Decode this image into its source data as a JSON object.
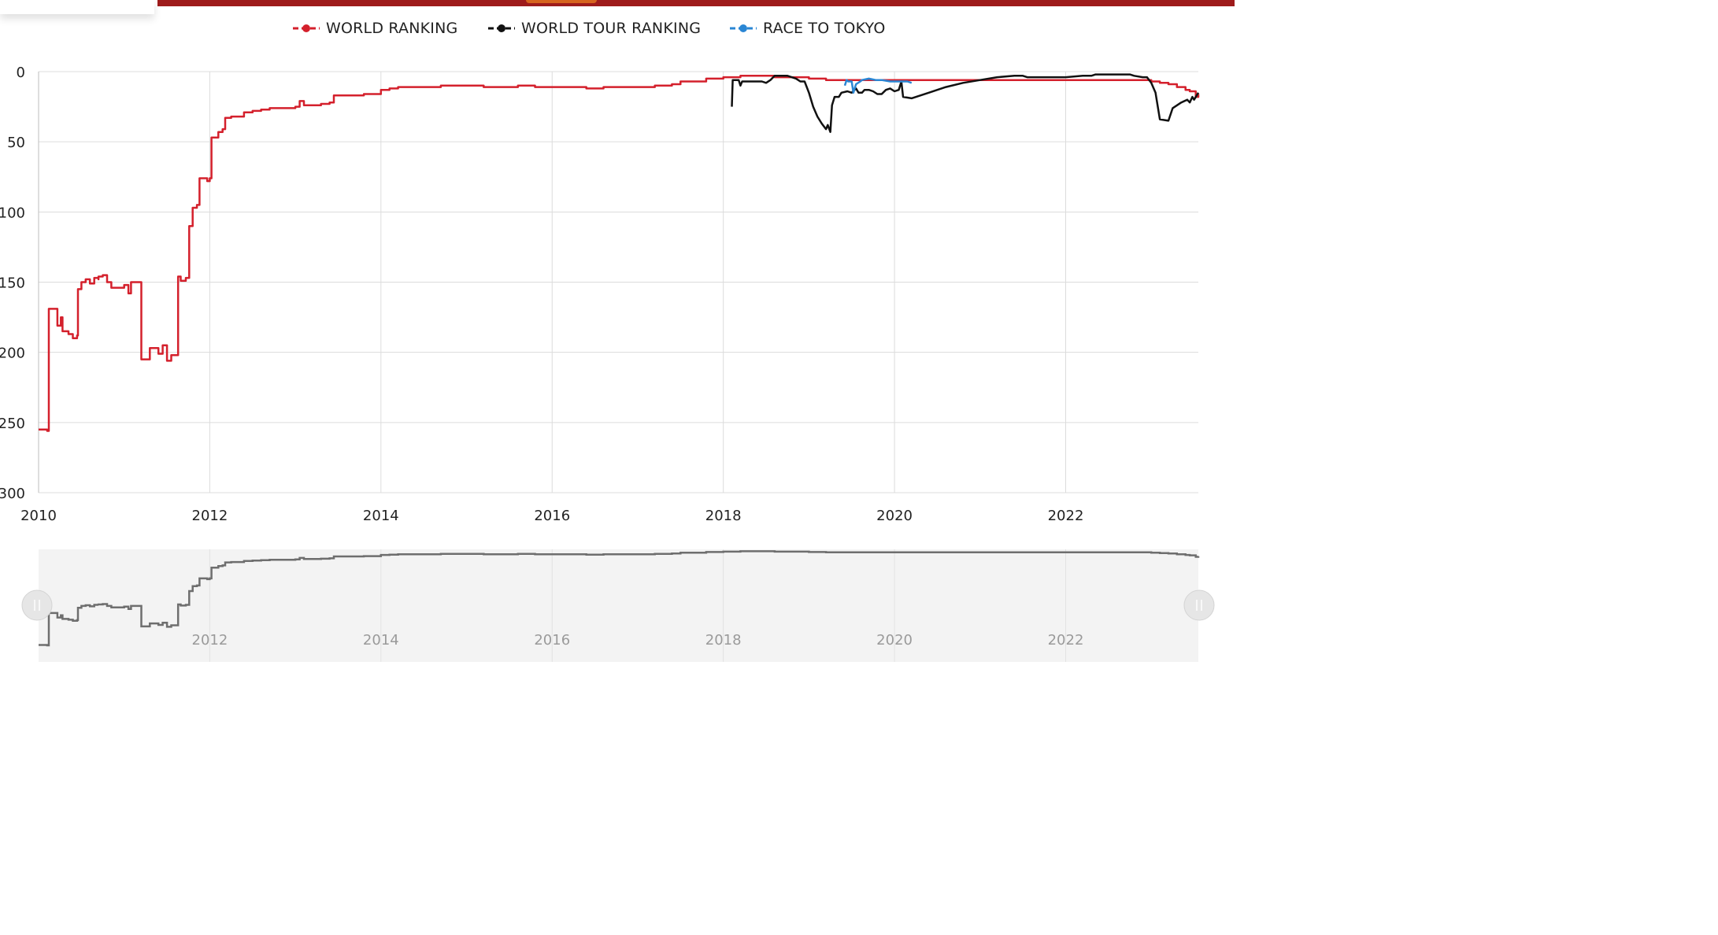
{
  "colors": {
    "world_ranking": "#d4202c",
    "world_tour_ranking": "#111111",
    "race_to_tokyo": "#2a86d4",
    "navigator_line": "#6e6e6e",
    "grid": "#dcdcdc",
    "header_bar": "#9e1b1b"
  },
  "chart_data": {
    "type": "line",
    "title": "",
    "xlabel": "",
    "ylabel": "",
    "y_reversed": true,
    "ylim": [
      0,
      300
    ],
    "xlim": [
      2010.0,
      2023.55
    ],
    "y_ticks": [
      0,
      50,
      100,
      150,
      200,
      250,
      300
    ],
    "y_tick_labels": [
      "0",
      "50",
      "100",
      "150",
      "200",
      "250",
      "300"
    ],
    "x_ticks": [
      2010,
      2012,
      2014,
      2016,
      2018,
      2020,
      2022
    ],
    "x_tick_labels": [
      "2010",
      "2012",
      "2014",
      "2016",
      "2018",
      "2020",
      "2022"
    ],
    "navigator_x_tick_labels": [
      "2012",
      "2014",
      "2016",
      "2018",
      "2020",
      "2022"
    ],
    "grid": true,
    "legend_position": "top-center",
    "series": [
      {
        "name": "WORLD RANKING",
        "key": "world_ranking",
        "points": [
          [
            2010.0,
            255
          ],
          [
            2010.08,
            255
          ],
          [
            2010.1,
            256
          ],
          [
            2010.12,
            169
          ],
          [
            2010.2,
            169
          ],
          [
            2010.22,
            181
          ],
          [
            2010.26,
            175
          ],
          [
            2010.28,
            185
          ],
          [
            2010.35,
            187
          ],
          [
            2010.4,
            190
          ],
          [
            2010.45,
            188
          ],
          [
            2010.46,
            155
          ],
          [
            2010.5,
            150
          ],
          [
            2010.55,
            148
          ],
          [
            2010.6,
            151
          ],
          [
            2010.65,
            147
          ],
          [
            2010.7,
            148
          ],
          [
            2010.7,
            146
          ],
          [
            2010.75,
            145
          ],
          [
            2010.8,
            150
          ],
          [
            2010.85,
            154
          ],
          [
            2010.95,
            154
          ],
          [
            2011.0,
            152
          ],
          [
            2011.05,
            158
          ],
          [
            2011.08,
            150
          ],
          [
            2011.18,
            150
          ],
          [
            2011.2,
            205
          ],
          [
            2011.25,
            205
          ],
          [
            2011.3,
            197
          ],
          [
            2011.38,
            197
          ],
          [
            2011.4,
            201
          ],
          [
            2011.45,
            195
          ],
          [
            2011.5,
            206
          ],
          [
            2011.55,
            202
          ],
          [
            2011.62,
            202
          ],
          [
            2011.63,
            146
          ],
          [
            2011.66,
            149
          ],
          [
            2011.72,
            147
          ],
          [
            2011.76,
            110
          ],
          [
            2011.8,
            97
          ],
          [
            2011.85,
            95
          ],
          [
            2011.88,
            76
          ],
          [
            2011.95,
            76
          ],
          [
            2011.97,
            78
          ],
          [
            2012.0,
            76
          ],
          [
            2012.02,
            47
          ],
          [
            2012.08,
            47
          ],
          [
            2012.1,
            43
          ],
          [
            2012.15,
            41
          ],
          [
            2012.18,
            33
          ],
          [
            2012.25,
            32
          ],
          [
            2012.35,
            32
          ],
          [
            2012.4,
            29
          ],
          [
            2012.5,
            28
          ],
          [
            2012.6,
            27
          ],
          [
            2012.7,
            26
          ],
          [
            2012.8,
            26
          ],
          [
            2012.9,
            26
          ],
          [
            2013.0,
            25
          ],
          [
            2013.05,
            21
          ],
          [
            2013.1,
            24
          ],
          [
            2013.2,
            24
          ],
          [
            2013.3,
            23
          ],
          [
            2013.4,
            22
          ],
          [
            2013.45,
            17
          ],
          [
            2013.6,
            17
          ],
          [
            2013.8,
            16
          ],
          [
            2013.95,
            16
          ],
          [
            2014.0,
            13
          ],
          [
            2014.1,
            12
          ],
          [
            2014.2,
            11
          ],
          [
            2014.3,
            11
          ],
          [
            2014.5,
            11
          ],
          [
            2014.7,
            10
          ],
          [
            2014.9,
            10
          ],
          [
            2015.0,
            10
          ],
          [
            2015.2,
            11
          ],
          [
            2015.4,
            11
          ],
          [
            2015.6,
            10
          ],
          [
            2015.8,
            11
          ],
          [
            2016.0,
            11
          ],
          [
            2016.2,
            11
          ],
          [
            2016.4,
            12
          ],
          [
            2016.6,
            11
          ],
          [
            2016.8,
            11
          ],
          [
            2017.0,
            11
          ],
          [
            2017.2,
            10
          ],
          [
            2017.4,
            9
          ],
          [
            2017.5,
            7
          ],
          [
            2017.6,
            7
          ],
          [
            2017.8,
            5
          ],
          [
            2017.9,
            5
          ],
          [
            2018.0,
            4
          ],
          [
            2018.1,
            4
          ],
          [
            2018.2,
            3
          ],
          [
            2018.3,
            3
          ],
          [
            2018.5,
            3
          ],
          [
            2018.6,
            4
          ],
          [
            2018.8,
            4
          ],
          [
            2019.0,
            5
          ],
          [
            2019.2,
            6
          ],
          [
            2019.4,
            6
          ],
          [
            2019.6,
            6
          ],
          [
            2019.8,
            6
          ],
          [
            2020.0,
            6
          ],
          [
            2020.2,
            6
          ],
          [
            2020.5,
            6
          ],
          [
            2021.0,
            6
          ],
          [
            2021.5,
            6
          ],
          [
            2022.0,
            6
          ],
          [
            2022.5,
            6
          ],
          [
            2022.8,
            6
          ],
          [
            2023.0,
            7
          ],
          [
            2023.1,
            8
          ],
          [
            2023.2,
            9
          ],
          [
            2023.3,
            11
          ],
          [
            2023.4,
            13
          ],
          [
            2023.45,
            14
          ],
          [
            2023.5,
            14
          ],
          [
            2023.52,
            18
          ],
          [
            2023.55,
            16
          ]
        ]
      },
      {
        "name": "WORLD TOUR RANKING",
        "key": "world_tour_ranking",
        "points": [
          [
            2018.1,
            25
          ],
          [
            2018.11,
            6
          ],
          [
            2018.18,
            6
          ],
          [
            2018.2,
            10
          ],
          [
            2018.22,
            7
          ],
          [
            2018.3,
            7
          ],
          [
            2018.45,
            7
          ],
          [
            2018.5,
            8
          ],
          [
            2018.55,
            6
          ],
          [
            2018.6,
            3
          ],
          [
            2018.75,
            3
          ],
          [
            2018.85,
            5
          ],
          [
            2018.9,
            7
          ],
          [
            2018.95,
            7
          ],
          [
            2019.0,
            15
          ],
          [
            2019.05,
            25
          ],
          [
            2019.1,
            32
          ],
          [
            2019.15,
            37
          ],
          [
            2019.2,
            41
          ],
          [
            2019.22,
            38
          ],
          [
            2019.25,
            43
          ],
          [
            2019.27,
            24
          ],
          [
            2019.3,
            18
          ],
          [
            2019.35,
            18
          ],
          [
            2019.38,
            15
          ],
          [
            2019.45,
            14
          ],
          [
            2019.5,
            15
          ],
          [
            2019.55,
            12
          ],
          [
            2019.58,
            15
          ],
          [
            2019.62,
            15
          ],
          [
            2019.65,
            13
          ],
          [
            2019.7,
            13
          ],
          [
            2019.75,
            14
          ],
          [
            2019.8,
            16
          ],
          [
            2019.85,
            16
          ],
          [
            2019.9,
            13
          ],
          [
            2019.95,
            12
          ],
          [
            2020.0,
            14
          ],
          [
            2020.05,
            13
          ],
          [
            2020.08,
            7
          ],
          [
            2020.1,
            18
          ],
          [
            2020.2,
            19
          ],
          [
            2020.4,
            15
          ],
          [
            2020.6,
            11
          ],
          [
            2020.8,
            8
          ],
          [
            2021.0,
            6
          ],
          [
            2021.2,
            4
          ],
          [
            2021.4,
            3
          ],
          [
            2021.5,
            3
          ],
          [
            2021.55,
            4
          ],
          [
            2021.8,
            4
          ],
          [
            2022.0,
            4
          ],
          [
            2022.2,
            3
          ],
          [
            2022.3,
            3
          ],
          [
            2022.35,
            2
          ],
          [
            2022.6,
            2
          ],
          [
            2022.75,
            2
          ],
          [
            2022.8,
            3
          ],
          [
            2022.9,
            4
          ],
          [
            2022.95,
            4
          ],
          [
            2023.0,
            8
          ],
          [
            2023.05,
            15
          ],
          [
            2023.1,
            34
          ],
          [
            2023.2,
            35
          ],
          [
            2023.25,
            26
          ],
          [
            2023.35,
            22
          ],
          [
            2023.42,
            20
          ],
          [
            2023.45,
            22
          ],
          [
            2023.48,
            18
          ],
          [
            2023.5,
            20
          ],
          [
            2023.55,
            15
          ]
        ]
      },
      {
        "name": "RACE TO TOKYO",
        "key": "race_to_tokyo",
        "points": [
          [
            2019.42,
            10
          ],
          [
            2019.44,
            6
          ],
          [
            2019.46,
            7
          ],
          [
            2019.5,
            7
          ],
          [
            2019.52,
            15
          ],
          [
            2019.55,
            9
          ],
          [
            2019.6,
            7
          ],
          [
            2019.62,
            6
          ],
          [
            2019.7,
            5
          ],
          [
            2019.78,
            6
          ],
          [
            2019.85,
            6
          ],
          [
            2019.95,
            7
          ],
          [
            2020.0,
            7
          ],
          [
            2020.15,
            7
          ],
          [
            2020.2,
            8
          ]
        ]
      }
    ]
  }
}
